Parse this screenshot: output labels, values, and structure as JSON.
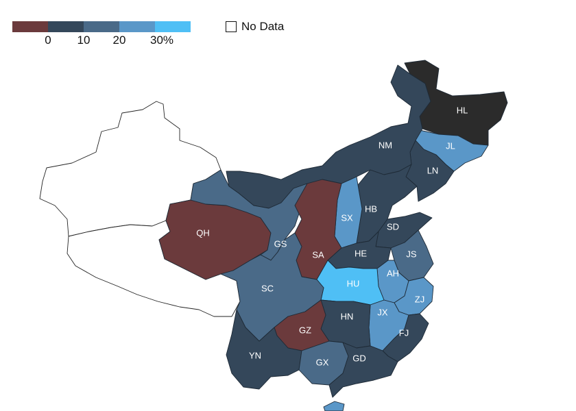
{
  "legend": {
    "bins": [
      {
        "key": "neg",
        "color": "#6b3a3c"
      },
      {
        "key": "b0_10",
        "color": "#34475a"
      },
      {
        "key": "b10_20",
        "color": "#4a6a88"
      },
      {
        "key": "b20_30",
        "color": "#5a97c8"
      },
      {
        "key": "b30p",
        "color": "#4fbff5"
      }
    ],
    "ticks": [
      "0",
      "10",
      "20",
      "30%"
    ],
    "no_data_label": "No Data"
  },
  "provinces": [
    {
      "code": "HL",
      "bin": "dark",
      "label": "HL"
    },
    {
      "code": "JL",
      "bin": "b20_30",
      "label": "JL"
    },
    {
      "code": "LN",
      "bin": "b0_10",
      "label": "LN"
    },
    {
      "code": "NM",
      "bin": "b0_10",
      "label": "NM"
    },
    {
      "code": "HB",
      "bin": "b0_10",
      "label": "HB"
    },
    {
      "code": "SX",
      "bin": "b20_30",
      "label": "SX"
    },
    {
      "code": "SD",
      "bin": "b0_10",
      "label": "SD"
    },
    {
      "code": "QH",
      "bin": "neg",
      "label": "QH"
    },
    {
      "code": "GS",
      "bin": "b10_20",
      "label": "GS"
    },
    {
      "code": "SA",
      "bin": "neg",
      "label": "SA"
    },
    {
      "code": "HE",
      "bin": "b0_10",
      "label": "HE"
    },
    {
      "code": "JS",
      "bin": "b10_20",
      "label": "JS"
    },
    {
      "code": "AH",
      "bin": "b20_30",
      "label": "AH"
    },
    {
      "code": "HU",
      "bin": "b30p",
      "label": "HU"
    },
    {
      "code": "SC",
      "bin": "b10_20",
      "label": "SC"
    },
    {
      "code": "ZJ",
      "bin": "b20_30",
      "label": "ZJ"
    },
    {
      "code": "JX",
      "bin": "b20_30",
      "label": "JX"
    },
    {
      "code": "HN",
      "bin": "b0_10",
      "label": "HN"
    },
    {
      "code": "FJ",
      "bin": "b0_10",
      "label": "FJ"
    },
    {
      "code": "GZ",
      "bin": "neg",
      "label": "GZ"
    },
    {
      "code": "YN",
      "bin": "b0_10",
      "label": "YN"
    },
    {
      "code": "GX",
      "bin": "b10_20",
      "label": "GX"
    },
    {
      "code": "GD",
      "bin": "b0_10",
      "label": "GD"
    },
    {
      "code": "XJ",
      "bin": "none",
      "label": ""
    },
    {
      "code": "XZ",
      "bin": "none",
      "label": ""
    }
  ],
  "colors": {
    "dark": "#2b2b2b",
    "neg": "#6b3a3c",
    "b0_10": "#34475a",
    "b10_20": "#4a6a88",
    "b20_30": "#5a97c8",
    "b30p": "#4fbff5",
    "none": "#ffffff"
  }
}
